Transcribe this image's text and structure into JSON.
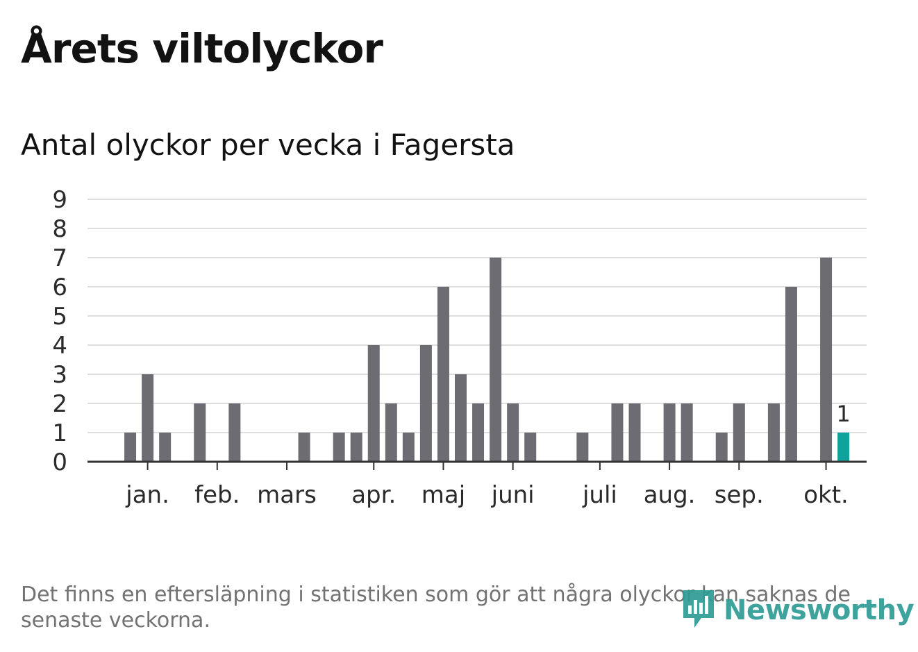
{
  "title": "Årets viltolyckor",
  "subtitle": "Antal olyckor per vecka i Fagersta",
  "footnote": "Det finns en eftersläpning i statistiken som gör att några olyckor kan saknas de senaste veckorna.",
  "brand": {
    "name": "Newsworthy",
    "icon": "newsworthy-logo-icon"
  },
  "colors": {
    "bar": "#6d6c72",
    "highlight": "#10a39d",
    "grid": "#dedede",
    "axis": "#333333"
  },
  "chart_data": {
    "type": "bar",
    "title": "Antal olyckor per vecka i Fagersta",
    "xlabel": "",
    "ylabel": "",
    "ylim": [
      0,
      9
    ],
    "yticks": [
      0,
      1,
      2,
      3,
      4,
      5,
      6,
      7,
      8,
      9
    ],
    "grid": true,
    "weeks": [
      1,
      2,
      3,
      4,
      5,
      6,
      7,
      8,
      9,
      10,
      11,
      12,
      13,
      14,
      15,
      16,
      17,
      18,
      19,
      20,
      21,
      22,
      23,
      24,
      25,
      26,
      27,
      28,
      29,
      30,
      31,
      32,
      33,
      34,
      35,
      36,
      37,
      38,
      39,
      40,
      41,
      42,
      43,
      44
    ],
    "values": [
      0,
      1,
      3,
      1,
      0,
      2,
      0,
      2,
      0,
      0,
      0,
      1,
      0,
      1,
      1,
      4,
      2,
      1,
      4,
      6,
      3,
      2,
      7,
      2,
      1,
      0,
      0,
      1,
      0,
      2,
      2,
      0,
      2,
      2,
      0,
      1,
      2,
      0,
      2,
      6,
      0,
      7,
      1,
      0
    ],
    "highlight_week": 43,
    "highlight_label": "1",
    "month_ticks": [
      {
        "label": "jan.",
        "week": 3
      },
      {
        "label": "feb.",
        "week": 7
      },
      {
        "label": "mars",
        "week": 11
      },
      {
        "label": "apr.",
        "week": 16
      },
      {
        "label": "maj",
        "week": 20
      },
      {
        "label": "juni",
        "week": 24
      },
      {
        "label": "juli",
        "week": 29
      },
      {
        "label": "aug.",
        "week": 33
      },
      {
        "label": "sep.",
        "week": 37
      },
      {
        "label": "okt.",
        "week": 42
      }
    ]
  }
}
